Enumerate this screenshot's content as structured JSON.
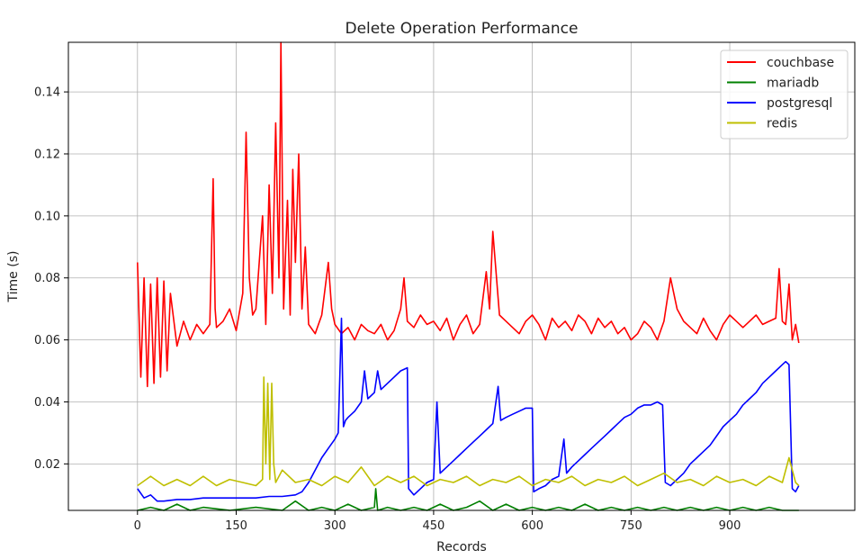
{
  "chart_data": {
    "type": "line",
    "title": "Delete Operation Performance",
    "xlabel": "Records",
    "ylabel": "Time (s)",
    "xlim": [
      -105,
      1090
    ],
    "ylim": [
      0.005,
      0.156
    ],
    "xticks": [
      0,
      150,
      300,
      450,
      600,
      750,
      900
    ],
    "yticks": [
      0.02,
      0.04,
      0.06,
      0.08,
      0.1,
      0.12,
      0.14
    ],
    "ytick_labels": [
      "0.02",
      "0.04",
      "0.06",
      "0.08",
      "0.10",
      "0.12",
      "0.14"
    ],
    "grid": true,
    "legend_position": "top-right",
    "series": [
      {
        "name": "couchbase",
        "color": "#ff0000",
        "x": [
          0,
          5,
          10,
          15,
          20,
          25,
          30,
          35,
          40,
          45,
          50,
          60,
          70,
          80,
          90,
          100,
          110,
          115,
          118,
          120,
          130,
          140,
          150,
          160,
          165,
          170,
          175,
          180,
          190,
          195,
          200,
          205,
          210,
          215,
          218,
          222,
          228,
          232,
          236,
          240,
          245,
          250,
          255,
          260,
          270,
          280,
          290,
          295,
          300,
          310,
          320,
          330,
          340,
          350,
          360,
          370,
          380,
          390,
          400,
          405,
          410,
          420,
          430,
          440,
          450,
          460,
          470,
          480,
          490,
          500,
          510,
          520,
          530,
          535,
          540,
          550,
          560,
          570,
          580,
          590,
          600,
          610,
          620,
          630,
          640,
          650,
          660,
          670,
          680,
          690,
          700,
          710,
          720,
          730,
          740,
          750,
          760,
          770,
          780,
          790,
          800,
          810,
          820,
          830,
          840,
          850,
          860,
          870,
          880,
          890,
          900,
          910,
          920,
          930,
          940,
          950,
          960,
          970,
          975,
          980,
          985,
          990,
          995,
          1000,
          1005
        ],
        "values": [
          0.085,
          0.048,
          0.08,
          0.045,
          0.078,
          0.046,
          0.08,
          0.048,
          0.079,
          0.05,
          0.075,
          0.058,
          0.066,
          0.06,
          0.065,
          0.062,
          0.065,
          0.112,
          0.07,
          0.064,
          0.066,
          0.07,
          0.063,
          0.075,
          0.127,
          0.08,
          0.068,
          0.07,
          0.1,
          0.065,
          0.11,
          0.075,
          0.13,
          0.08,
          0.158,
          0.07,
          0.105,
          0.068,
          0.115,
          0.085,
          0.12,
          0.07,
          0.09,
          0.065,
          0.062,
          0.068,
          0.085,
          0.07,
          0.065,
          0.062,
          0.064,
          0.06,
          0.065,
          0.063,
          0.062,
          0.065,
          0.06,
          0.063,
          0.07,
          0.08,
          0.066,
          0.064,
          0.068,
          0.065,
          0.066,
          0.063,
          0.067,
          0.06,
          0.065,
          0.068,
          0.062,
          0.065,
          0.082,
          0.07,
          0.095,
          0.068,
          0.066,
          0.064,
          0.062,
          0.066,
          0.068,
          0.065,
          0.06,
          0.067,
          0.064,
          0.066,
          0.063,
          0.068,
          0.066,
          0.062,
          0.067,
          0.064,
          0.066,
          0.062,
          0.064,
          0.06,
          0.062,
          0.066,
          0.064,
          0.06,
          0.066,
          0.08,
          0.07,
          0.066,
          0.064,
          0.062,
          0.067,
          0.063,
          0.06,
          0.065,
          0.068,
          0.066,
          0.064,
          0.066,
          0.068,
          0.065,
          0.066,
          0.067,
          0.083,
          0.066,
          0.065,
          0.078,
          0.06,
          0.065,
          0.059
        ]
      },
      {
        "name": "mariadb",
        "color": "#008000",
        "x": [
          0,
          20,
          40,
          60,
          80,
          100,
          140,
          180,
          220,
          240,
          260,
          280,
          300,
          320,
          340,
          360,
          362,
          365,
          380,
          400,
          420,
          440,
          460,
          480,
          500,
          520,
          540,
          560,
          580,
          600,
          620,
          640,
          660,
          680,
          700,
          720,
          740,
          760,
          780,
          800,
          820,
          840,
          860,
          880,
          900,
          920,
          940,
          960,
          980,
          1005
        ],
        "values": [
          0.005,
          0.006,
          0.005,
          0.007,
          0.005,
          0.006,
          0.005,
          0.006,
          0.005,
          0.008,
          0.005,
          0.006,
          0.005,
          0.007,
          0.005,
          0.006,
          0.012,
          0.005,
          0.006,
          0.005,
          0.006,
          0.005,
          0.007,
          0.005,
          0.006,
          0.008,
          0.005,
          0.007,
          0.005,
          0.006,
          0.005,
          0.006,
          0.005,
          0.007,
          0.005,
          0.006,
          0.005,
          0.006,
          0.005,
          0.006,
          0.005,
          0.006,
          0.005,
          0.006,
          0.005,
          0.006,
          0.005,
          0.006,
          0.005,
          0.005
        ]
      },
      {
        "name": "postgresql",
        "color": "#0000ff",
        "x": [
          0,
          10,
          20,
          30,
          40,
          60,
          80,
          100,
          120,
          140,
          160,
          180,
          200,
          220,
          240,
          250,
          260,
          270,
          280,
          290,
          300,
          305,
          310,
          313,
          316,
          320,
          330,
          340,
          345,
          350,
          360,
          365,
          370,
          380,
          390,
          400,
          410,
          412,
          420,
          430,
          440,
          450,
          455,
          460,
          470,
          480,
          490,
          500,
          510,
          520,
          530,
          540,
          548,
          552,
          560,
          570,
          580,
          590,
          600,
          602,
          610,
          620,
          630,
          640,
          648,
          652,
          660,
          670,
          680,
          690,
          700,
          710,
          720,
          730,
          740,
          750,
          760,
          770,
          780,
          790,
          798,
          802,
          810,
          820,
          830,
          840,
          850,
          860,
          870,
          880,
          890,
          900,
          910,
          920,
          930,
          940,
          950,
          960,
          970,
          980,
          985,
          990,
          995,
          1000,
          1005
        ],
        "values": [
          0.012,
          0.009,
          0.01,
          0.008,
          0.008,
          0.0085,
          0.0085,
          0.009,
          0.009,
          0.009,
          0.009,
          0.009,
          0.0095,
          0.0095,
          0.01,
          0.011,
          0.014,
          0.018,
          0.022,
          0.025,
          0.028,
          0.03,
          0.067,
          0.032,
          0.034,
          0.035,
          0.037,
          0.04,
          0.05,
          0.041,
          0.043,
          0.05,
          0.044,
          0.046,
          0.048,
          0.05,
          0.051,
          0.012,
          0.01,
          0.012,
          0.014,
          0.015,
          0.04,
          0.017,
          0.019,
          0.021,
          0.023,
          0.025,
          0.027,
          0.029,
          0.031,
          0.033,
          0.045,
          0.034,
          0.035,
          0.036,
          0.037,
          0.038,
          0.038,
          0.011,
          0.012,
          0.013,
          0.015,
          0.016,
          0.028,
          0.017,
          0.019,
          0.021,
          0.023,
          0.025,
          0.027,
          0.029,
          0.031,
          0.033,
          0.035,
          0.036,
          0.038,
          0.039,
          0.039,
          0.04,
          0.039,
          0.014,
          0.013,
          0.015,
          0.017,
          0.02,
          0.022,
          0.024,
          0.026,
          0.029,
          0.032,
          0.034,
          0.036,
          0.039,
          0.041,
          0.043,
          0.046,
          0.048,
          0.05,
          0.052,
          0.053,
          0.052,
          0.012,
          0.011,
          0.013
        ]
      },
      {
        "name": "redis",
        "color": "#bfbf00",
        "x": [
          0,
          20,
          40,
          60,
          80,
          100,
          120,
          140,
          160,
          180,
          190,
          192,
          195,
          198,
          201,
          204,
          207,
          210,
          220,
          240,
          260,
          280,
          300,
          320,
          340,
          360,
          380,
          400,
          420,
          440,
          460,
          480,
          500,
          520,
          540,
          560,
          580,
          600,
          620,
          640,
          660,
          680,
          700,
          720,
          740,
          760,
          780,
          800,
          820,
          840,
          860,
          880,
          900,
          920,
          940,
          960,
          980,
          990,
          1000,
          1005
        ],
        "values": [
          0.013,
          0.016,
          0.013,
          0.015,
          0.013,
          0.016,
          0.013,
          0.015,
          0.014,
          0.013,
          0.015,
          0.048,
          0.02,
          0.046,
          0.015,
          0.046,
          0.02,
          0.014,
          0.018,
          0.014,
          0.015,
          0.013,
          0.016,
          0.014,
          0.019,
          0.013,
          0.016,
          0.014,
          0.016,
          0.013,
          0.015,
          0.014,
          0.016,
          0.013,
          0.015,
          0.014,
          0.016,
          0.013,
          0.015,
          0.014,
          0.016,
          0.013,
          0.015,
          0.014,
          0.016,
          0.013,
          0.015,
          0.017,
          0.014,
          0.015,
          0.013,
          0.016,
          0.014,
          0.015,
          0.013,
          0.016,
          0.014,
          0.022,
          0.014,
          0.013
        ]
      }
    ]
  }
}
